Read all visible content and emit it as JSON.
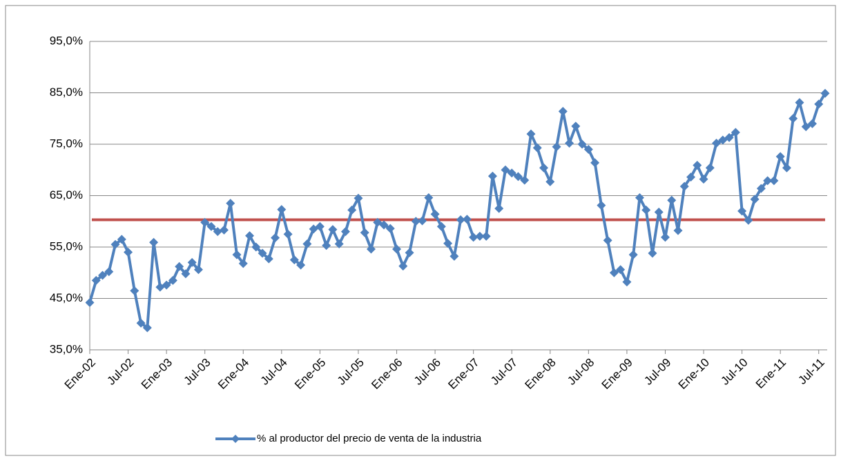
{
  "chart_data": {
    "type": "line",
    "categories": [
      "Ene-02",
      null,
      null,
      null,
      null,
      null,
      "Jul-02",
      null,
      null,
      null,
      null,
      null,
      "Ene-03",
      null,
      null,
      null,
      null,
      null,
      "Jul-03",
      null,
      null,
      null,
      null,
      null,
      "Ene-04",
      null,
      null,
      null,
      null,
      null,
      "Jul-04",
      null,
      null,
      null,
      null,
      null,
      "Ene-05",
      null,
      null,
      null,
      null,
      null,
      "Jul-05",
      null,
      null,
      null,
      null,
      null,
      "Ene-06",
      null,
      null,
      null,
      null,
      null,
      "Jul-06",
      null,
      null,
      null,
      null,
      null,
      "Ene-07",
      null,
      null,
      null,
      null,
      null,
      "Jul-07",
      null,
      null,
      null,
      null,
      null,
      "Ene-08",
      null,
      null,
      null,
      null,
      null,
      "Jul-08",
      null,
      null,
      null,
      null,
      null,
      "Ene-09",
      null,
      null,
      null,
      null,
      null,
      "Jul-09",
      null,
      null,
      null,
      null,
      null,
      "Ene-10",
      null,
      null,
      null,
      null,
      null,
      "Jul-10",
      null,
      null,
      null,
      null,
      null,
      "Ene-11",
      null,
      null,
      null,
      null,
      null,
      "Jul-11",
      null
    ],
    "series": [
      {
        "name": "% al productor del precio de venta de la industria",
        "color": "#4f81bd",
        "values": [
          44.2,
          48.5,
          49.5,
          50.2,
          55.5,
          56.5,
          54,
          46.5,
          40.2,
          39.3,
          55.9,
          47.2,
          47.6,
          48.5,
          51.2,
          49.8,
          52,
          50.6,
          59.8,
          59,
          58,
          58.3,
          63.5,
          53.5,
          51.8,
          57.2,
          55,
          53.8,
          52.7,
          56.8,
          62.3,
          57.5,
          52.5,
          51.5,
          55.6,
          58.5,
          59,
          55.3,
          58.4,
          55.6,
          58,
          62.2,
          64.5,
          57.8,
          54.6,
          59.8,
          59.3,
          58.6,
          54.6,
          51.3,
          53.9,
          60,
          60.1,
          64.6,
          61.4,
          59,
          55.7,
          53.2,
          60.3,
          60.4,
          56.9,
          57.1,
          57.1,
          68.8,
          62.5,
          70,
          69.4,
          68.7,
          68,
          77,
          74.3,
          70.4,
          67.7,
          74.5,
          81.4,
          75.2,
          78.5,
          75,
          74,
          71.4,
          63.1,
          56.3,
          50,
          50.6,
          48.2,
          53.5,
          64.6,
          62.2,
          53.8,
          61.8,
          56.9,
          64.1,
          58.2,
          66.8,
          68.6,
          70.9,
          68.2,
          70.4,
          75.2,
          75.8,
          76.3,
          77.3,
          62,
          60.2,
          64.3,
          66.4,
          67.9,
          67.9,
          72.6,
          70.4,
          80,
          83.1,
          78.4,
          79,
          82.8,
          84.9
        ]
      }
    ],
    "reference_line": {
      "value": 60.3,
      "color": "#c0504d"
    },
    "ylim": [
      35,
      95
    ],
    "yticks": [
      {
        "value": 35,
        "label": "35,0%"
      },
      {
        "value": 45,
        "label": "45,0%"
      },
      {
        "value": 55,
        "label": "55,0%"
      },
      {
        "value": 65,
        "label": "65,0%"
      },
      {
        "value": 75,
        "label": "75,0%"
      },
      {
        "value": 85,
        "label": "85,0%"
      },
      {
        "value": 95,
        "label": "95,0%"
      }
    ],
    "grid": true
  }
}
